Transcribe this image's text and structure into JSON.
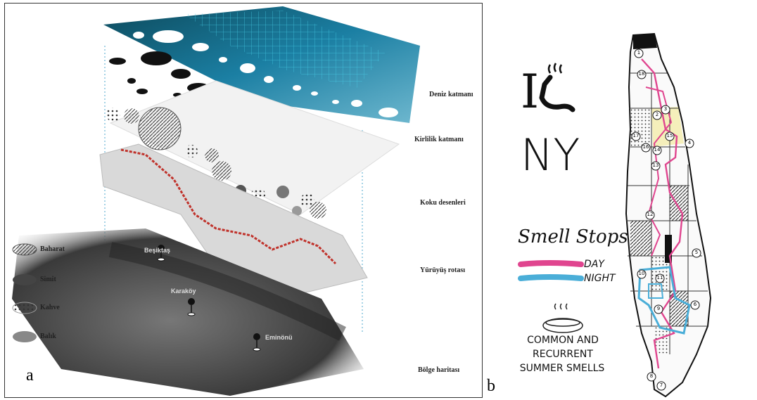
{
  "panel_a": {
    "letter": "a",
    "layers": [
      "Deniz katmanı",
      "Kirlilik katmanı",
      "Koku desenleri",
      "Yürüyüş rotası",
      "Bölge haritası"
    ],
    "legend": [
      "Baharat",
      "Simit",
      "Kahve",
      "Balık"
    ],
    "places": [
      "Beşiktaş",
      "Karaköy",
      "Eminönü"
    ]
  },
  "panel_b": {
    "letter": "b",
    "title_line1": "I",
    "title_line2": "NY",
    "smell_stops": "Smell Stops",
    "day": "DAY",
    "night": "NIGHT",
    "caption_line1": "COMMON AND",
    "caption_line2": "RECURRENT",
    "caption_line3": "SUMMER SMELLS",
    "numbers": [
      "1",
      "2",
      "3",
      "4",
      "5",
      "6",
      "7",
      "8",
      "9",
      "10",
      "11",
      "12",
      "13",
      "14",
      "15",
      "16",
      "17",
      "18"
    ]
  },
  "colors": {
    "day": "#e0458f",
    "night": "#4aaed8",
    "sea": "#3fc4e0"
  }
}
